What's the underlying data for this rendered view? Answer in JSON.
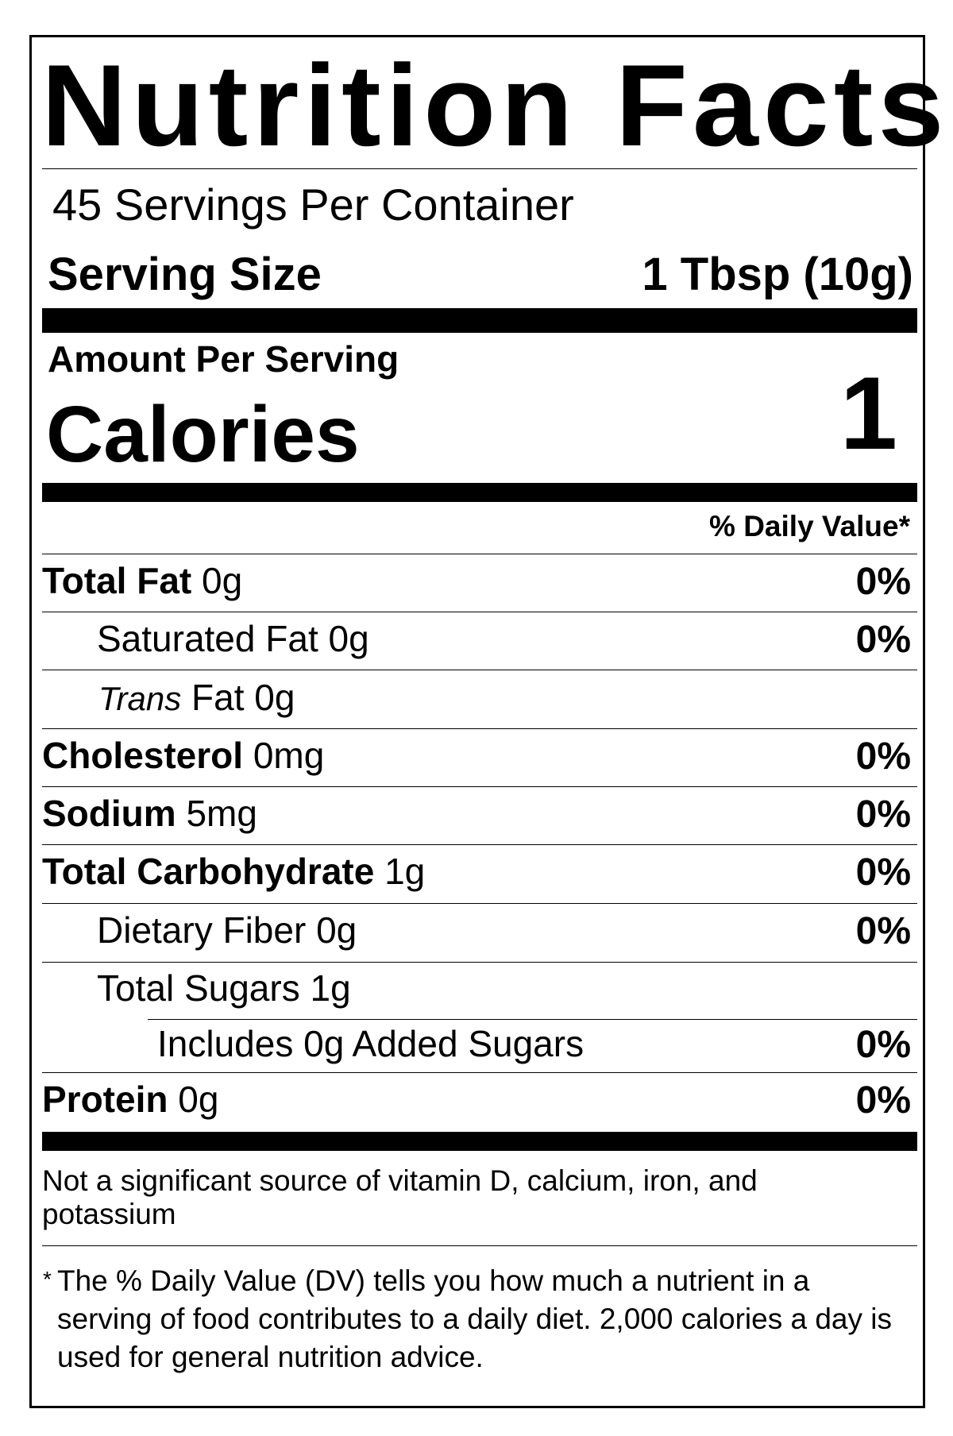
{
  "title": "Nutrition Facts",
  "servings_per_container": "45 Servings Per Container",
  "serving_size": {
    "label": "Serving Size",
    "value": "1 Tbsp (10g)"
  },
  "amount_per_serving": "Amount Per Serving",
  "calories": {
    "label": "Calories",
    "value": "1"
  },
  "daily_value_header": "% Daily Value*",
  "nutrients": [
    {
      "name": "Total Fat",
      "amount": "0g",
      "dv": "0%"
    },
    {
      "name": "Saturated Fat",
      "amount": "0g",
      "dv": "0%"
    },
    {
      "name": "Trans",
      "suffix": "Fat",
      "amount": "0g"
    },
    {
      "name": "Cholesterol",
      "amount": "0mg",
      "dv": "0%"
    },
    {
      "name": "Sodium",
      "amount": "5mg",
      "dv": "0%"
    },
    {
      "name": "Total Carbohydrate",
      "amount": "1g",
      "dv": "0%"
    },
    {
      "name": "Dietary Fiber",
      "amount": "0g",
      "dv": "0%"
    },
    {
      "name": "Total Sugars",
      "amount": "1g"
    },
    {
      "name": "Includes 0g Added Sugars",
      "dv": "0%"
    },
    {
      "name": "Protein",
      "amount": "0g",
      "dv": "0%"
    }
  ],
  "footnote_vitamins": "Not a significant source of vitamin D, calcium, iron, and potassium",
  "footnote_asterisk": "*",
  "footnote_dv": "The % Daily Value (DV) tells you how much a nutrient in a serving of food contributes to a daily diet. 2,000 calories a day is used for general nutrition advice."
}
